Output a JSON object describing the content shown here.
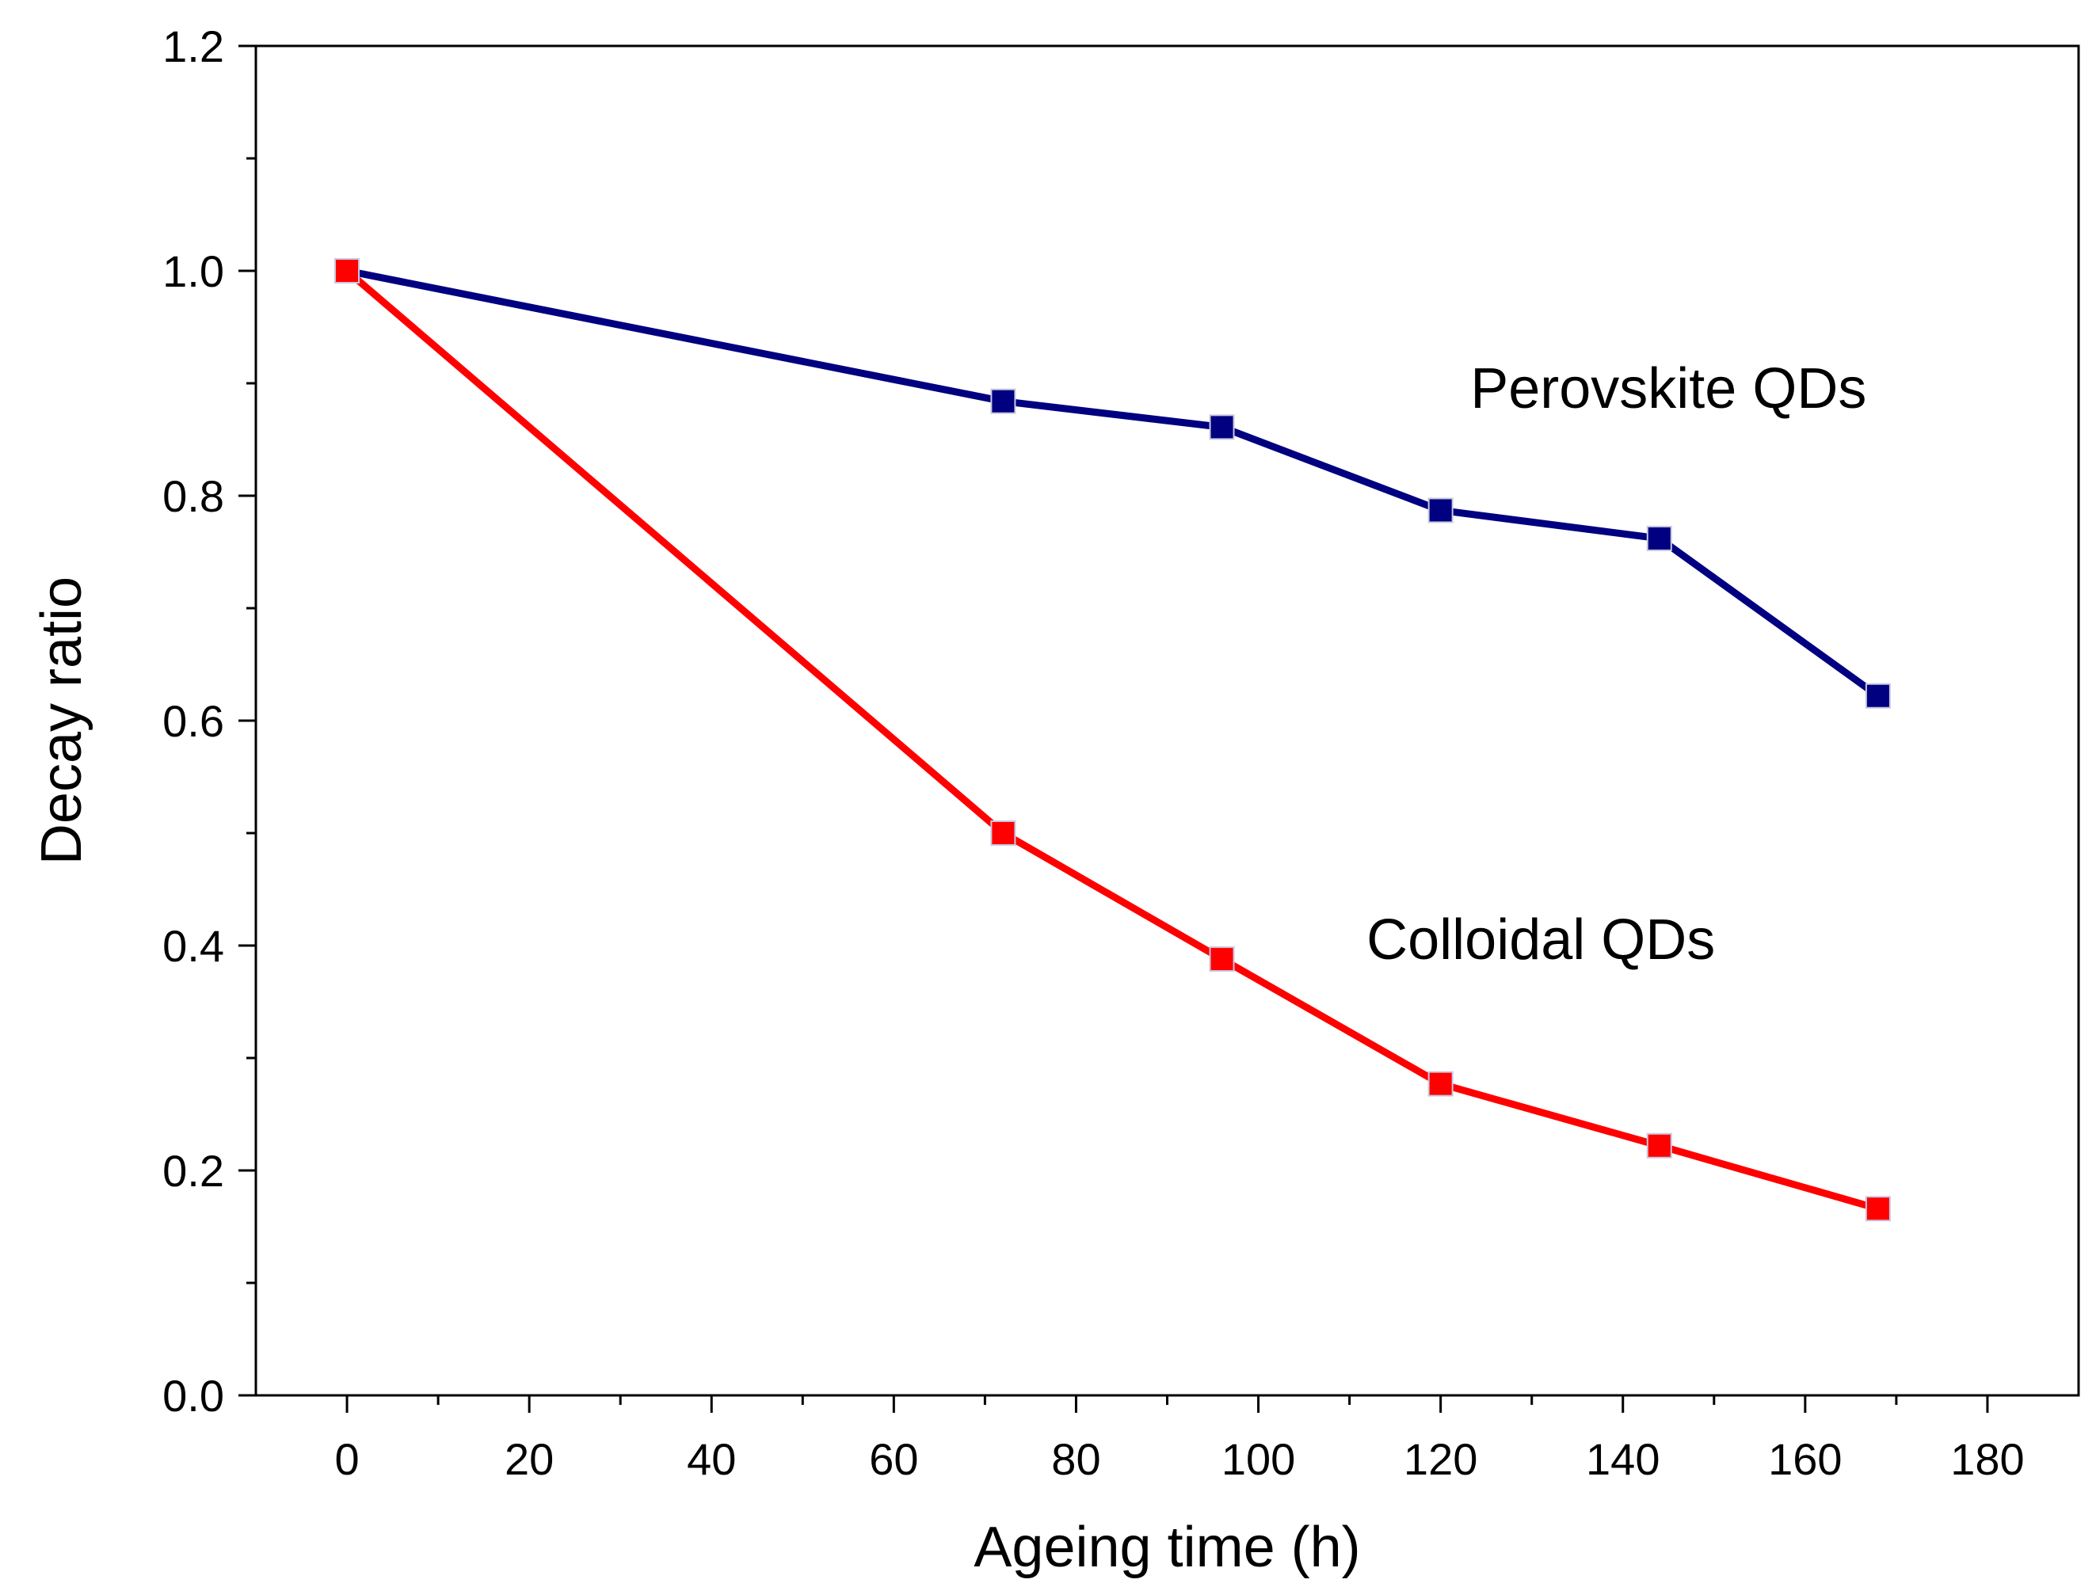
{
  "chart_data": {
    "type": "line",
    "title": "",
    "xlabel": "Ageing time (h)",
    "ylabel": "Decay ratio",
    "xlim": [
      -10,
      190
    ],
    "ylim": [
      0.0,
      1.2
    ],
    "x_ticks": [
      0,
      20,
      40,
      60,
      80,
      100,
      120,
      140,
      160,
      180
    ],
    "x_tick_labels": [
      "0",
      "20",
      "40",
      "60",
      "80",
      "100",
      "120",
      "140",
      "160",
      "180"
    ],
    "y_ticks": [
      0.0,
      0.2,
      0.4,
      0.6,
      0.8,
      1.0,
      1.2
    ],
    "y_tick_labels": [
      "0.0",
      "0.2",
      "0.4",
      "0.6",
      "0.8",
      "1.0",
      "1.2"
    ],
    "grid": false,
    "legend": "none",
    "series": [
      {
        "name": "Perovskite QDs",
        "color": "#000080",
        "marker": "square",
        "x": [
          0,
          72,
          96,
          120,
          144,
          168
        ],
        "values": [
          1.0,
          0.884,
          0.861,
          0.787,
          0.762,
          0.622
        ]
      },
      {
        "name": "Colloidal QDs",
        "color": "#ff0000",
        "marker": "square",
        "x": [
          0,
          72,
          96,
          120,
          144,
          168
        ],
        "values": [
          1.0,
          0.5,
          0.388,
          0.277,
          0.222,
          0.166
        ]
      }
    ],
    "annotations": [
      {
        "text": "Perovskite QDs",
        "series": 0,
        "x": 145,
        "y": 0.895
      },
      {
        "text": "Colloidal QDs",
        "series": 1,
        "x": 131,
        "y": 0.405
      }
    ]
  }
}
